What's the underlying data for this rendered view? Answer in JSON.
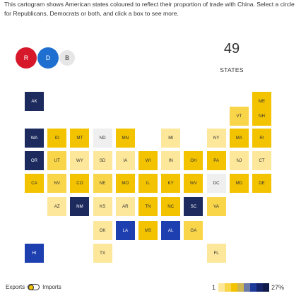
{
  "intro": "This cartogram shows American states coloured to reflect their proportion of trade with China. Select a circle for Republicans, Democrats or both, and click a box to see more.",
  "parties": {
    "republicans": "R",
    "democrats": "D",
    "both": "B"
  },
  "count": {
    "value": "49",
    "label": "STATES"
  },
  "legend": {
    "exports_label": "Exports",
    "imports_label": "Imports",
    "scale_min": "1",
    "scale_max": "27%",
    "scale_colors": [
      "#fde79a",
      "#f9d54a",
      "#f3c300",
      "#ccb552",
      "#6b7aa6",
      "#1d3a9a",
      "#14236a",
      "#0f1a4a"
    ]
  },
  "colors": {
    "light_yellow": "#fde79a",
    "yellow": "#f9d54a",
    "gold": "#f3c300",
    "pale": "#efefef",
    "blue": "#1d3fb0",
    "navy": "#1c2a5e"
  },
  "states": [
    {
      "code": "AK",
      "color": "#1c2a5e"
    },
    {
      "code": "ME",
      "color": "#f3c300"
    },
    {
      "code": "VT",
      "color": "#f9d54a"
    },
    {
      "code": "NH",
      "color": "#f3c300"
    },
    {
      "code": "WA",
      "color": "#1c2a5e"
    },
    {
      "code": "ID",
      "color": "#f3c300"
    },
    {
      "code": "MT",
      "color": "#f3c300"
    },
    {
      "code": "ND",
      "color": "#efefef"
    },
    {
      "code": "MN",
      "color": "#f3c300"
    },
    {
      "code": "MI",
      "color": "#fde79a"
    },
    {
      "code": "NY",
      "color": "#fde79a"
    },
    {
      "code": "MA",
      "color": "#f3c300"
    },
    {
      "code": "RI",
      "color": "#f3c300"
    },
    {
      "code": "OR",
      "color": "#1c2a5e"
    },
    {
      "code": "UT",
      "color": "#f9d54a"
    },
    {
      "code": "WY",
      "color": "#fde79a"
    },
    {
      "code": "SD",
      "color": "#fde79a"
    },
    {
      "code": "IA",
      "color": "#fde79a"
    },
    {
      "code": "WI",
      "color": "#f3c300"
    },
    {
      "code": "IN",
      "color": "#fde79a"
    },
    {
      "code": "OH",
      "color": "#f3c300"
    },
    {
      "code": "PA",
      "color": "#f3c300"
    },
    {
      "code": "NJ",
      "color": "#fde79a"
    },
    {
      "code": "CT",
      "color": "#fde79a"
    },
    {
      "code": "CA",
      "color": "#f3c300"
    },
    {
      "code": "NV",
      "color": "#f9d54a"
    },
    {
      "code": "CO",
      "color": "#f3c300"
    },
    {
      "code": "NE",
      "color": "#f9d54a"
    },
    {
      "code": "MO",
      "color": "#f3c300"
    },
    {
      "code": "IL",
      "color": "#f3c300"
    },
    {
      "code": "KY",
      "color": "#f3c300"
    },
    {
      "code": "WV",
      "color": "#f3c300"
    },
    {
      "code": "DC",
      "color": "#efefef"
    },
    {
      "code": "MD",
      "color": "#f3c300"
    },
    {
      "code": "DE",
      "color": "#f3c300"
    },
    {
      "code": "AZ",
      "color": "#fde79a"
    },
    {
      "code": "NM",
      "color": "#1c2a5e"
    },
    {
      "code": "KS",
      "color": "#fde79a"
    },
    {
      "code": "AR",
      "color": "#fde79a"
    },
    {
      "code": "TN",
      "color": "#f3c300"
    },
    {
      "code": "NC",
      "color": "#f3c300"
    },
    {
      "code": "SC",
      "color": "#1c2a5e"
    },
    {
      "code": "VA",
      "color": "#f9d54a"
    },
    {
      "code": "OK",
      "color": "#fde79a"
    },
    {
      "code": "LA",
      "color": "#1d3fb0"
    },
    {
      "code": "MS",
      "color": "#f3c300"
    },
    {
      "code": "AL",
      "color": "#1d3fb0"
    },
    {
      "code": "GA",
      "color": "#f9d54a"
    },
    {
      "code": "HI",
      "color": "#1d3fb0"
    },
    {
      "code": "TX",
      "color": "#fde79a"
    },
    {
      "code": "FL",
      "color": "#fde79a"
    }
  ]
}
